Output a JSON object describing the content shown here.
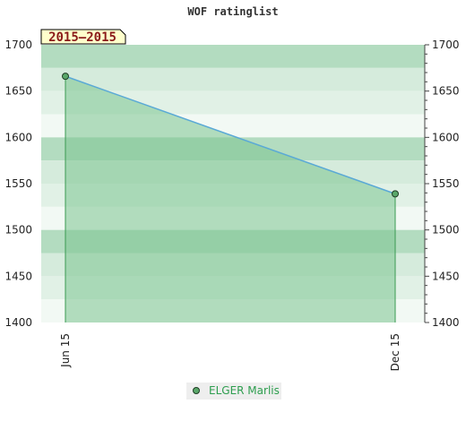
{
  "title": "WOF ratinglist",
  "period_label": "2015–2015",
  "chart_data": {
    "type": "area",
    "title": "WOF ratinglist",
    "xlabel": "",
    "ylabel": "",
    "categories": [
      "Jun 15",
      "Dec 15"
    ],
    "series": [
      {
        "name": "ELGER Marlis",
        "values": [
          1666,
          1539
        ]
      }
    ],
    "ylim": [
      1400,
      1700
    ],
    "yticks": [
      "1400",
      "1450",
      "1500",
      "1550",
      "1600",
      "1650",
      "1700"
    ],
    "grid": true,
    "legend": "bottom",
    "colors": {
      "line": "#5aa9d6",
      "fill": "#7cc48f",
      "marker": "#5aa86a",
      "band_dark": "#b3dcc0",
      "band_light": "#d5ebdc",
      "legend_bg": "#eeeeee",
      "badge_bg": "#ffffcc"
    }
  }
}
